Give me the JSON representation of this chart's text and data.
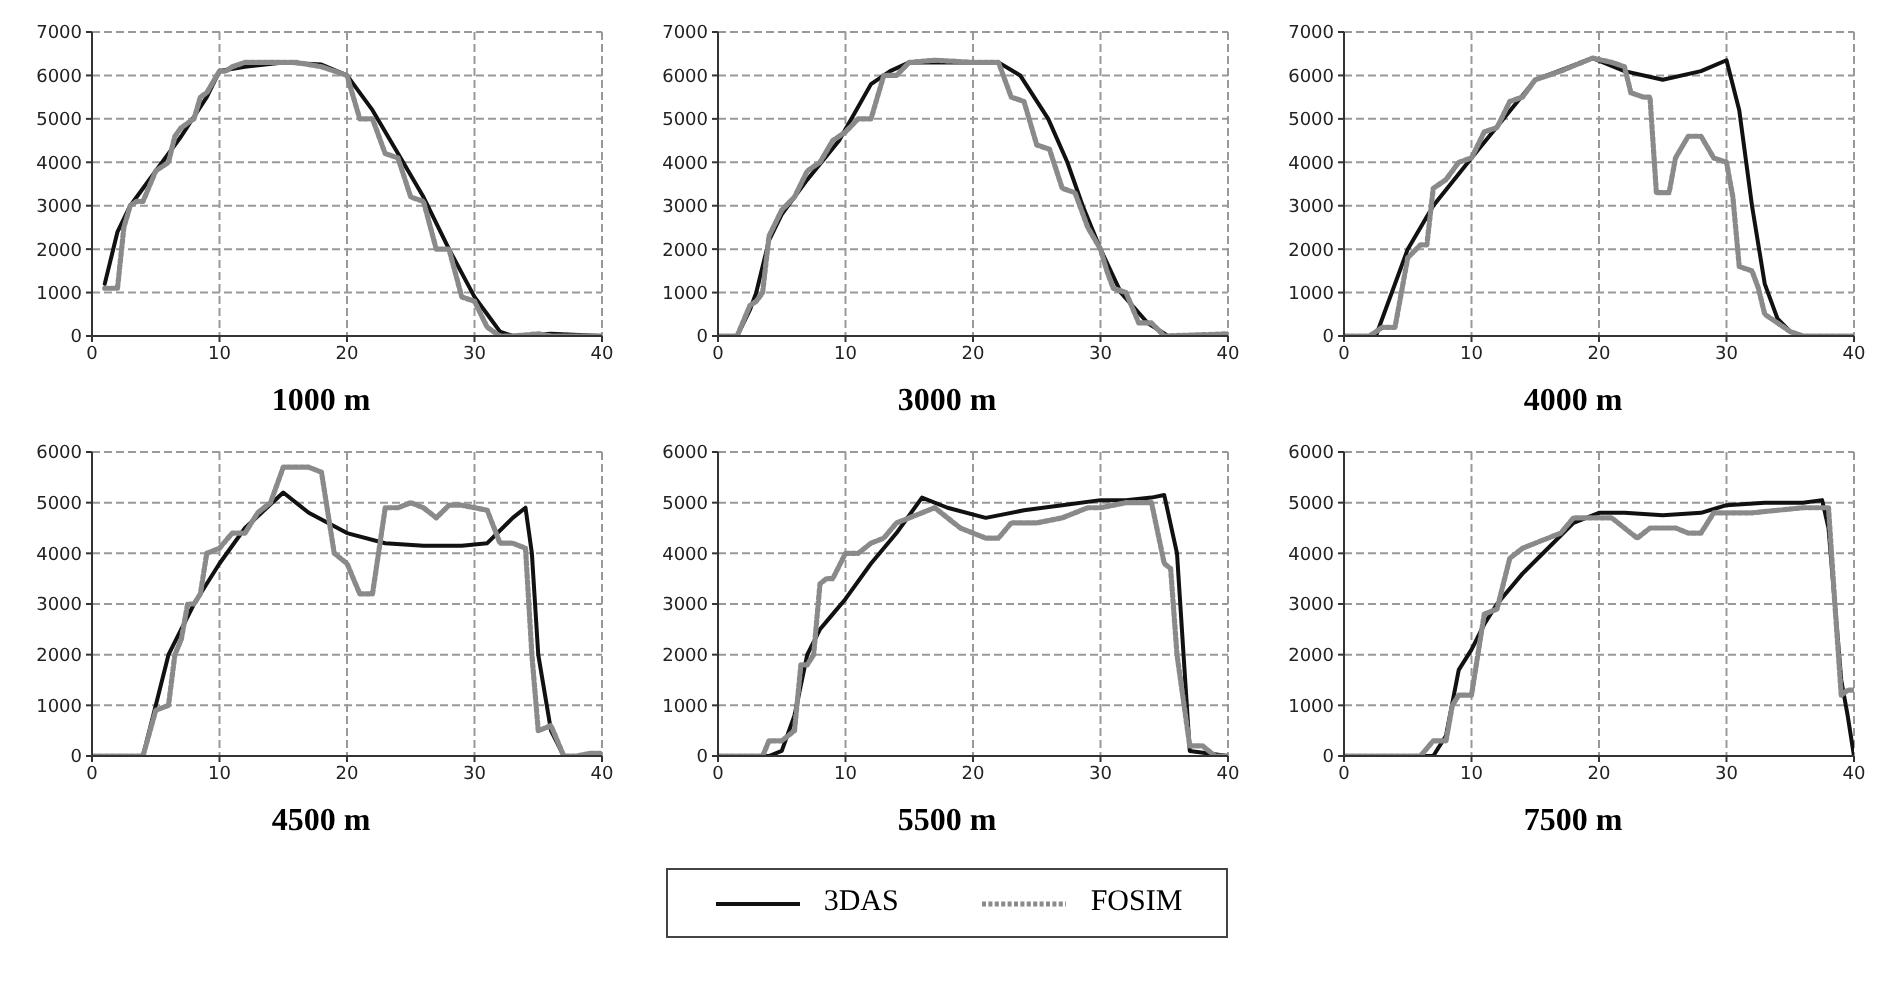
{
  "chart_data": [
    {
      "type": "line",
      "title": "1000 m",
      "xlim": [
        0,
        40
      ],
      "xticks": [
        0,
        10,
        20,
        30,
        40
      ],
      "ylim": [
        0,
        7000
      ],
      "yticks": [
        0,
        1000,
        2000,
        3000,
        4000,
        5000,
        6000,
        7000
      ],
      "grid": true,
      "legend": "bottom",
      "series": [
        {
          "name": "3DAS",
          "color": "#111111",
          "line_style": "solid",
          "x": [
            1,
            2,
            3,
            5,
            7,
            9,
            10,
            12,
            15,
            18,
            20,
            22,
            24,
            26,
            28,
            30,
            31,
            32,
            33,
            36,
            40
          ],
          "values": [
            1200,
            2400,
            3000,
            3800,
            4600,
            5500,
            6100,
            6200,
            6300,
            6250,
            6000,
            5200,
            4200,
            3200,
            2000,
            900,
            500,
            100,
            0,
            50,
            0
          ]
        },
        {
          "name": "FOSIM",
          "color": "#8a8a8a",
          "line_style": "dotted",
          "x": [
            1,
            2,
            2.5,
            3,
            3.5,
            4,
            5,
            6,
            6.5,
            7,
            8,
            8.5,
            9,
            10,
            10.5,
            11,
            12,
            14,
            16,
            18,
            19,
            20,
            21,
            22,
            23,
            24,
            25,
            26,
            27,
            28,
            29,
            30,
            31,
            32,
            33,
            35,
            36,
            38,
            40
          ],
          "values": [
            1100,
            1100,
            2500,
            3000,
            3100,
            3100,
            3800,
            4000,
            4600,
            4800,
            5000,
            5500,
            5600,
            6100,
            6100,
            6200,
            6300,
            6300,
            6300,
            6200,
            6100,
            6000,
            5000,
            5000,
            4200,
            4100,
            3200,
            3100,
            2000,
            2000,
            900,
            800,
            200,
            0,
            0,
            50,
            0,
            0,
            0
          ]
        }
      ]
    },
    {
      "type": "line",
      "title": "3000 m",
      "xlim": [
        0,
        40
      ],
      "xticks": [
        0,
        10,
        20,
        30,
        40
      ],
      "ylim": [
        0,
        7000
      ],
      "yticks": [
        0,
        1000,
        2000,
        3000,
        4000,
        5000,
        6000,
        7000
      ],
      "grid": true,
      "series": [
        {
          "color": "#111111",
          "line_style": "solid",
          "x": [
            0,
            1.5,
            2.5,
            3,
            4,
            5,
            7,
            9.5,
            12,
            13.5,
            15,
            22,
            23.7,
            25.9,
            27.4,
            28.6,
            30,
            31.6,
            33.7,
            35.3,
            40
          ],
          "values": [
            0,
            0,
            600,
            1000,
            2200,
            2800,
            3600,
            4500,
            5800,
            6100,
            6300,
            6300,
            6000,
            5000,
            4000,
            3000,
            2000,
            1000,
            300,
            0,
            0
          ]
        },
        {
          "color": "#8a8a8a",
          "line_style": "dotted",
          "x": [
            0,
            1.5,
            2.5,
            3,
            3.5,
            4,
            5,
            6,
            7,
            8,
            9,
            10,
            11,
            12,
            12.5,
            13,
            14,
            15,
            17,
            20,
            22,
            23,
            24,
            25,
            26,
            27,
            28,
            29,
            30,
            30.5,
            31,
            32,
            33,
            34,
            35,
            40
          ],
          "values": [
            0,
            0,
            700,
            800,
            1000,
            2300,
            2900,
            3200,
            3800,
            4000,
            4500,
            4700,
            5000,
            5000,
            5500,
            6000,
            6000,
            6300,
            6350,
            6300,
            6300,
            5500,
            5400,
            4400,
            4300,
            3400,
            3300,
            2500,
            2000,
            1500,
            1100,
            1000,
            300,
            300,
            0,
            50
          ]
        }
      ]
    },
    {
      "type": "line",
      "title": "4000 m",
      "xlim": [
        0,
        40
      ],
      "xticks": [
        0,
        10,
        20,
        30,
        40
      ],
      "ylim": [
        0,
        7000
      ],
      "yticks": [
        0,
        1000,
        2000,
        3000,
        4000,
        5000,
        6000,
        7000
      ],
      "grid": true,
      "series": [
        {
          "color": "#111111",
          "line_style": "solid",
          "x": [
            0,
            2.5,
            5,
            7,
            10,
            15,
            19.5,
            22,
            25,
            28,
            30,
            31,
            32,
            33,
            34,
            35,
            36,
            40
          ],
          "values": [
            0,
            0,
            2000,
            3000,
            4100,
            5900,
            6400,
            6100,
            5900,
            6100,
            6350,
            5200,
            3000,
            1200,
            400,
            100,
            0,
            0
          ]
        },
        {
          "color": "#8a8a8a",
          "line_style": "dotted",
          "x": [
            0,
            2,
            3,
            4,
            5,
            6,
            6.5,
            7,
            8,
            9,
            10,
            11,
            12,
            13,
            14,
            15,
            17,
            19.5,
            21,
            22,
            22.5,
            23.5,
            24,
            24.5,
            25.5,
            26,
            27,
            28,
            29,
            30,
            30.5,
            31,
            32,
            32.5,
            33,
            34,
            35,
            36,
            40
          ],
          "values": [
            0,
            0,
            200,
            200,
            1800,
            2100,
            2100,
            3400,
            3600,
            4000,
            4100,
            4700,
            4800,
            5400,
            5500,
            5900,
            6100,
            6400,
            6300,
            6200,
            5600,
            5500,
            5500,
            3300,
            3300,
            4100,
            4600,
            4600,
            4100,
            4000,
            3200,
            1600,
            1500,
            1100,
            500,
            300,
            100,
            0,
            0
          ]
        }
      ]
    },
    {
      "type": "line",
      "title": "4500 m",
      "xlim": [
        0,
        40
      ],
      "xticks": [
        0,
        10,
        20,
        30,
        40
      ],
      "ylim": [
        0,
        6000
      ],
      "yticks": [
        0,
        1000,
        2000,
        3000,
        4000,
        5000,
        6000
      ],
      "grid": true,
      "series": [
        {
          "color": "#111111",
          "line_style": "solid",
          "x": [
            0,
            4,
            6,
            8,
            10,
            12,
            15,
            17,
            20,
            23,
            26,
            29,
            31,
            33,
            34,
            34.5,
            35,
            36,
            37,
            40
          ],
          "values": [
            0,
            0,
            2000,
            3000,
            3800,
            4500,
            5200,
            4800,
            4400,
            4200,
            4150,
            4150,
            4200,
            4700,
            4900,
            4000,
            2000,
            500,
            0,
            0
          ]
        },
        {
          "color": "#8a8a8a",
          "line_style": "dotted",
          "x": [
            0,
            4,
            5,
            6,
            6.5,
            7,
            7.5,
            8,
            8.5,
            9,
            10,
            11,
            12,
            13,
            14,
            15,
            16,
            17,
            18,
            19,
            20,
            21,
            22,
            23,
            24,
            25,
            26,
            27,
            28,
            29,
            30,
            31,
            32,
            33,
            34,
            34.5,
            35,
            36,
            37,
            38,
            39,
            40
          ],
          "values": [
            0,
            0,
            900,
            1000,
            2000,
            2300,
            3000,
            3000,
            3200,
            4000,
            4100,
            4400,
            4400,
            4800,
            5000,
            5700,
            5700,
            5700,
            5600,
            4000,
            3800,
            3200,
            3200,
            4900,
            4900,
            5000,
            4900,
            4700,
            4950,
            4950,
            4900,
            4850,
            4200,
            4200,
            4100,
            2000,
            500,
            600,
            0,
            0,
            50,
            50
          ]
        }
      ]
    },
    {
      "type": "line",
      "title": "5500 m",
      "xlim": [
        0,
        40
      ],
      "xticks": [
        0,
        10,
        20,
        30,
        40
      ],
      "ylim": [
        0,
        6000
      ],
      "yticks": [
        0,
        1000,
        2000,
        3000,
        4000,
        5000,
        6000
      ],
      "grid": true,
      "series": [
        {
          "color": "#111111",
          "line_style": "solid",
          "x": [
            0,
            4,
            5,
            6,
            7,
            8,
            9,
            10,
            12,
            14,
            16,
            18,
            21,
            24,
            27,
            30,
            32,
            34,
            35,
            36,
            37,
            40
          ],
          "values": [
            0,
            0,
            100,
            800,
            2000,
            2500,
            2800,
            3100,
            3800,
            4400,
            5100,
            4900,
            4700,
            4850,
            4950,
            5050,
            5050,
            5100,
            5150,
            4000,
            100,
            0
          ]
        },
        {
          "color": "#8a8a8a",
          "line_style": "dotted",
          "x": [
            0,
            3.5,
            4,
            5,
            6,
            6.5,
            7,
            7.5,
            8,
            8.5,
            9,
            10,
            11,
            12,
            13,
            14,
            15,
            16,
            17,
            18,
            19,
            20,
            21,
            22,
            23,
            24,
            25,
            27,
            29,
            30,
            32,
            34,
            35,
            35.5,
            36,
            37,
            38,
            39,
            40
          ],
          "values": [
            0,
            0,
            300,
            300,
            500,
            1800,
            1800,
            2000,
            3400,
            3500,
            3500,
            4000,
            4000,
            4200,
            4300,
            4600,
            4700,
            4800,
            4900,
            4700,
            4500,
            4400,
            4300,
            4300,
            4600,
            4600,
            4600,
            4700,
            4900,
            4900,
            5000,
            5000,
            3800,
            3700,
            2000,
            200,
            200,
            0,
            0
          ]
        }
      ]
    },
    {
      "type": "line",
      "title": "7500 m",
      "xlim": [
        0,
        40
      ],
      "xticks": [
        0,
        10,
        20,
        30,
        40
      ],
      "ylim": [
        0,
        6000
      ],
      "yticks": [
        0,
        1000,
        2000,
        3000,
        4000,
        5000,
        6000
      ],
      "grid": true,
      "series": [
        {
          "color": "#111111",
          "line_style": "solid",
          "x": [
            0,
            6,
            7,
            8,
            9,
            10,
            11,
            12,
            14,
            16,
            18,
            20,
            22,
            25,
            28,
            30,
            33,
            36,
            37.5,
            38,
            38.5,
            39,
            39.5,
            40
          ],
          "values": [
            0,
            0,
            0,
            400,
            1700,
            2100,
            2600,
            3000,
            3600,
            4100,
            4600,
            4800,
            4800,
            4750,
            4800,
            4950,
            5000,
            5000,
            5050,
            4500,
            3000,
            1500,
            800,
            0
          ]
        },
        {
          "color": "#8a8a8a",
          "line_style": "dotted",
          "x": [
            0,
            6,
            7,
            8,
            8.5,
            9,
            10,
            11,
            12,
            13,
            14,
            15,
            16,
            17,
            18,
            19,
            20,
            21,
            22,
            23,
            24,
            25,
            26,
            27,
            28,
            29,
            30,
            32,
            34,
            36,
            37,
            38,
            38.5,
            39,
            39.5,
            40
          ],
          "values": [
            0,
            0,
            300,
            300,
            1000,
            1200,
            1200,
            2800,
            2900,
            3900,
            4100,
            4200,
            4300,
            4400,
            4700,
            4700,
            4700,
            4700,
            4500,
            4300,
            4500,
            4500,
            4500,
            4400,
            4400,
            4800,
            4800,
            4800,
            4850,
            4900,
            4900,
            4900,
            3000,
            1200,
            1300,
            1300
          ]
        }
      ]
    }
  ]
}
